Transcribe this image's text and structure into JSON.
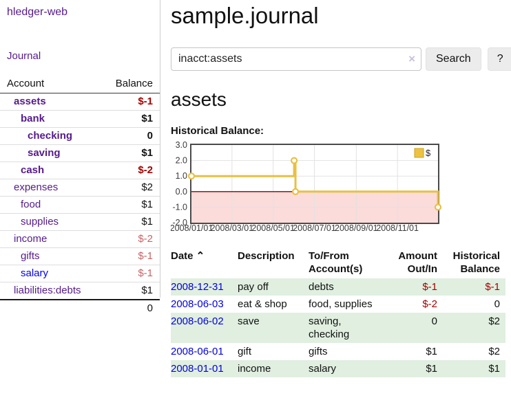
{
  "app": {
    "title": "hledger-web",
    "nav_journal": "Journal"
  },
  "sidebar": {
    "header": {
      "account": "Account",
      "balance": "Balance"
    },
    "accounts": [
      {
        "name": "assets",
        "indent": 1,
        "bold": true,
        "blue": false,
        "balance": "$-1",
        "balance_style": "neg-strong"
      },
      {
        "name": "bank",
        "indent": 2,
        "bold": true,
        "blue": false,
        "balance": "$1",
        "balance_style": "pos"
      },
      {
        "name": "checking",
        "indent": 3,
        "bold": true,
        "blue": false,
        "balance": "0",
        "balance_style": "pos"
      },
      {
        "name": "saving",
        "indent": 3,
        "bold": true,
        "blue": false,
        "balance": "$1",
        "balance_style": "pos"
      },
      {
        "name": "cash",
        "indent": 2,
        "bold": true,
        "blue": false,
        "balance": "$-2",
        "balance_style": "neg-strong"
      },
      {
        "name": "expenses",
        "indent": 1,
        "bold": false,
        "blue": false,
        "balance": "$2",
        "balance_style": "pos"
      },
      {
        "name": "food",
        "indent": 2,
        "bold": false,
        "blue": false,
        "balance": "$1",
        "balance_style": "pos"
      },
      {
        "name": "supplies",
        "indent": 2,
        "bold": false,
        "blue": false,
        "balance": "$1",
        "balance_style": "pos"
      },
      {
        "name": "income",
        "indent": 1,
        "bold": false,
        "blue": false,
        "balance": "$-2",
        "balance_style": "neg-soft"
      },
      {
        "name": "gifts",
        "indent": 2,
        "bold": false,
        "blue": false,
        "balance": "$-1",
        "balance_style": "neg-soft"
      },
      {
        "name": "salary",
        "indent": 2,
        "bold": false,
        "blue": true,
        "balance": "$-1",
        "balance_style": "neg-soft"
      },
      {
        "name": "liabilities:debts",
        "indent": 1,
        "bold": false,
        "blue": false,
        "balance": "$1",
        "balance_style": "pos"
      }
    ],
    "total": "0"
  },
  "main": {
    "title": "sample.journal",
    "search": {
      "value": "inacct:assets",
      "clear_label": "×",
      "button": "Search",
      "help_button": "?"
    },
    "account_heading": "assets",
    "chart_label": "Historical Balance:"
  },
  "chart_data": {
    "type": "line",
    "mode": "steps",
    "title": "Historical Balance:",
    "series": [
      {
        "name": "$",
        "color": "#edc240",
        "points": [
          [
            "2008-01-01",
            1
          ],
          [
            "2008-06-01",
            2
          ],
          [
            "2008-06-03",
            0
          ],
          [
            "2008-12-31",
            -1
          ]
        ]
      }
    ],
    "x_range": [
      "2008-01-01",
      "2008-12-31"
    ],
    "x_ticks": [
      "2008/01/01",
      "2008/03/01",
      "2008/05/01",
      "2008/07/01",
      "2008/09/01",
      "2008/11/01"
    ],
    "y_ticks": [
      3.0,
      2.0,
      1.0,
      0.0,
      -1.0,
      -2.0
    ],
    "y_tick_labels": [
      "3.0",
      "2.0",
      "1.0",
      "0.0",
      "-1.0",
      "-2.0"
    ],
    "ylim": [
      -2,
      3
    ],
    "grid": true,
    "legend_position": "top-right",
    "legend": [
      "$"
    ],
    "colors": {
      "line": "#e9c044",
      "marker_fill": "#ffffff",
      "negative_region": "#fcdbdb",
      "zero_line": "#8b0000",
      "gridline": "#e2e2e2",
      "border": "#4a4a4a",
      "tick_text": "#3a3a3a"
    }
  },
  "transactions": {
    "sort_icon": "⌃",
    "columns": [
      {
        "label": "Date",
        "align": "left"
      },
      {
        "label": "Description",
        "align": "left"
      },
      {
        "label": "To/From Account(s)",
        "align": "left"
      },
      {
        "label": "Amount Out/In",
        "align": "right"
      },
      {
        "label": "Historical Balance",
        "align": "right"
      }
    ],
    "rows": [
      {
        "date": "2008-12-31",
        "description": "pay off",
        "accounts": "debts",
        "amount": "$-1",
        "amount_neg": true,
        "balance": "$-1",
        "balance_neg": true
      },
      {
        "date": "2008-06-03",
        "description": "eat & shop",
        "accounts": "food, supplies",
        "amount": "$-2",
        "amount_neg": true,
        "balance": "0",
        "balance_neg": false
      },
      {
        "date": "2008-06-02",
        "description": "save",
        "accounts": "saving, checking",
        "amount": "0",
        "amount_neg": false,
        "balance": "$2",
        "balance_neg": false
      },
      {
        "date": "2008-06-01",
        "description": "gift",
        "accounts": "gifts",
        "amount": "$1",
        "amount_neg": false,
        "balance": "$2",
        "balance_neg": false
      },
      {
        "date": "2008-01-01",
        "description": "income",
        "accounts": "salary",
        "amount": "$1",
        "amount_neg": false,
        "balance": "$1",
        "balance_neg": false
      }
    ]
  }
}
